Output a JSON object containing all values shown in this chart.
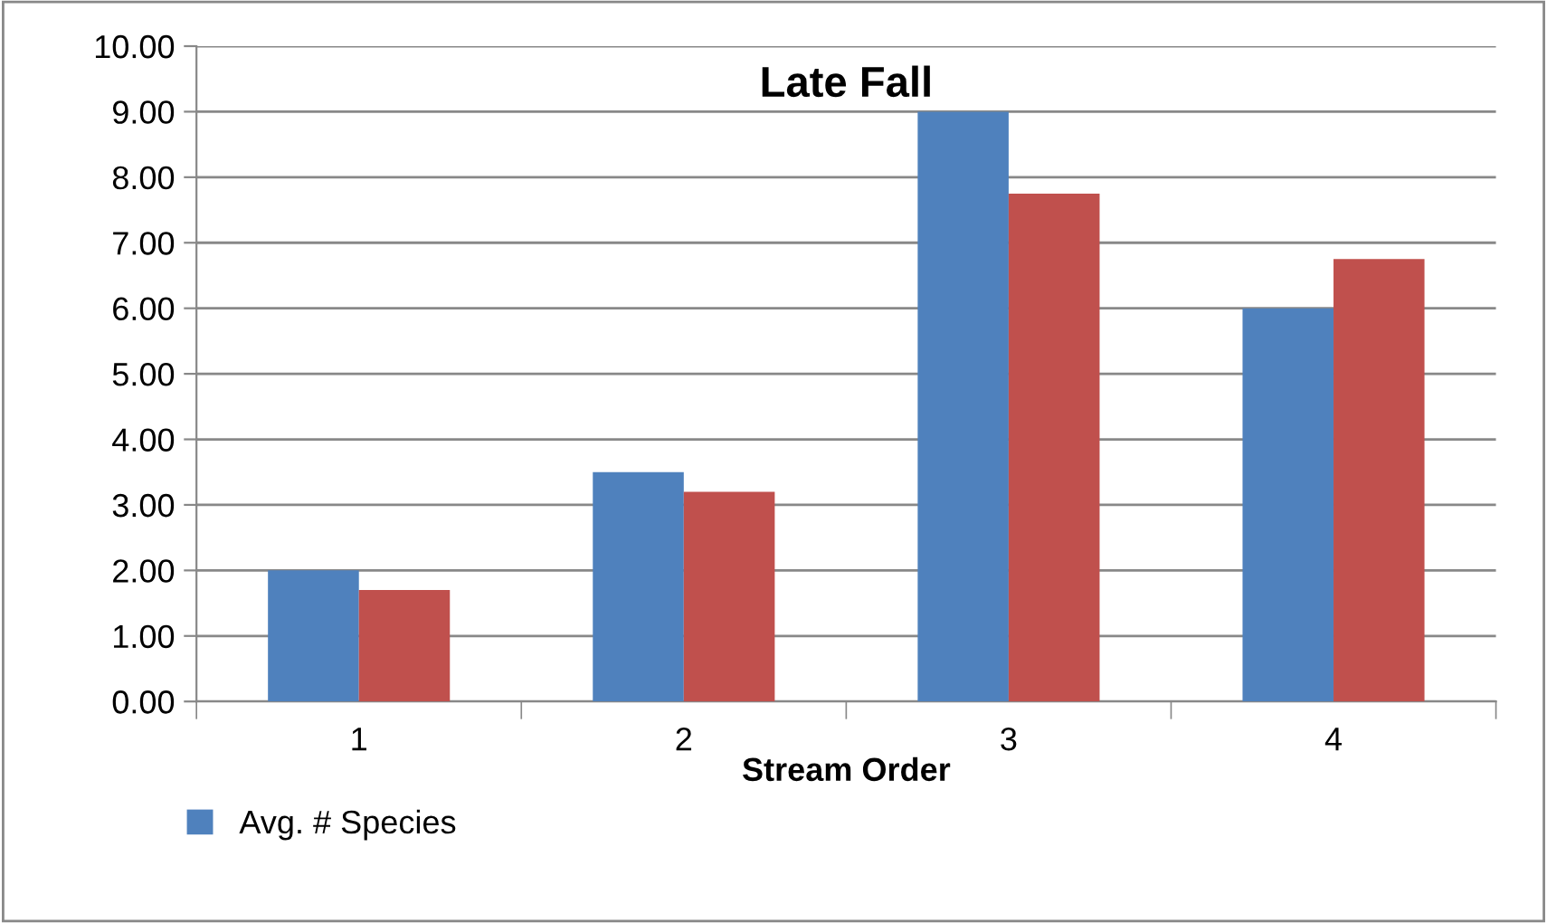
{
  "chart_data": {
    "type": "bar",
    "title": "Late Fall",
    "xlabel": "Stream Order",
    "categories": [
      "1",
      "2",
      "3",
      "4"
    ],
    "series": [
      {
        "name": "Avg. # Species",
        "color": "#4f81bd",
        "values": [
          2,
          3.5,
          9,
          6
        ]
      },
      {
        "color": "#c0504d",
        "values": [
          1.7,
          3.2,
          7.75,
          6.75
        ]
      }
    ],
    "ylim": [
      0,
      10
    ],
    "yticks": [
      {
        "value": 0,
        "label": "0.00"
      },
      {
        "value": 1,
        "label": "1.00"
      },
      {
        "value": 2,
        "label": "2.00"
      },
      {
        "value": 3,
        "label": "3.00"
      },
      {
        "value": 4,
        "label": "4.00"
      },
      {
        "value": 5,
        "label": "5.00"
      },
      {
        "value": 6,
        "label": "6.00"
      },
      {
        "value": 7,
        "label": "7.00"
      },
      {
        "value": 8,
        "label": "8.00"
      },
      {
        "value": 9,
        "label": "9.00"
      },
      {
        "value": 10,
        "label": "10.00"
      }
    ],
    "grid": "y",
    "legend": "bottom left"
  }
}
